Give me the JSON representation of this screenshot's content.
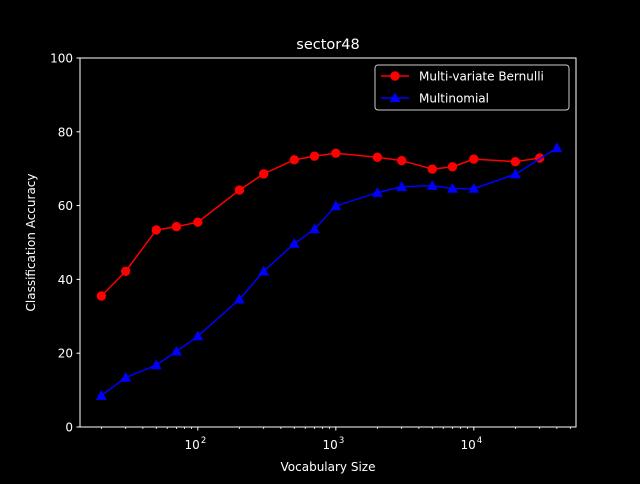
{
  "chart_data": {
    "type": "line",
    "title": "sector48",
    "xlabel": "Vocabulary Size",
    "ylabel": "Classification Accuracy",
    "xscale": "log",
    "xlim": [
      14,
      55000
    ],
    "ylim": [
      0,
      100
    ],
    "x_ticks": [
      {
        "value": 100,
        "base": "10",
        "exp": "2"
      },
      {
        "value": 1000,
        "base": "10",
        "exp": "3"
      },
      {
        "value": 10000,
        "base": "10",
        "exp": "4"
      }
    ],
    "y_ticks": [
      {
        "value": 0,
        "label": "0"
      },
      {
        "value": 20,
        "label": "20"
      },
      {
        "value": 40,
        "label": "40"
      },
      {
        "value": 60,
        "label": "60"
      },
      {
        "value": 80,
        "label": "80"
      },
      {
        "value": 100,
        "label": "100"
      }
    ],
    "grid": false,
    "legend_position": "top-right",
    "background": "#000000",
    "foreground": "#ffffff",
    "series": [
      {
        "name": "Multi-variate Bernulli",
        "color": "#ff0000",
        "marker": "circle",
        "x": [
          20,
          30,
          50,
          70,
          100,
          200,
          300,
          500,
          700,
          1000,
          2000,
          3000,
          5000,
          7000,
          10000,
          20000,
          30000
        ],
        "y": [
          35.5,
          42.2,
          53.4,
          54.3,
          55.5,
          64.2,
          68.6,
          72.4,
          73.4,
          74.2,
          73.1,
          72.2,
          69.9,
          70.5,
          72.6,
          71.9,
          72.9
        ]
      },
      {
        "name": "Multinomial",
        "color": "#0000ff",
        "marker": "triangle",
        "x": [
          20,
          30,
          50,
          70,
          100,
          200,
          300,
          500,
          700,
          1000,
          2000,
          3000,
          5000,
          7000,
          10000,
          20000,
          40000
        ],
        "y": [
          8.5,
          13.4,
          16.8,
          20.5,
          24.6,
          34.6,
          42.2,
          49.7,
          53.6,
          59.9,
          63.5,
          65.1,
          65.4,
          64.6,
          64.6,
          68.5,
          75.6
        ]
      }
    ]
  }
}
